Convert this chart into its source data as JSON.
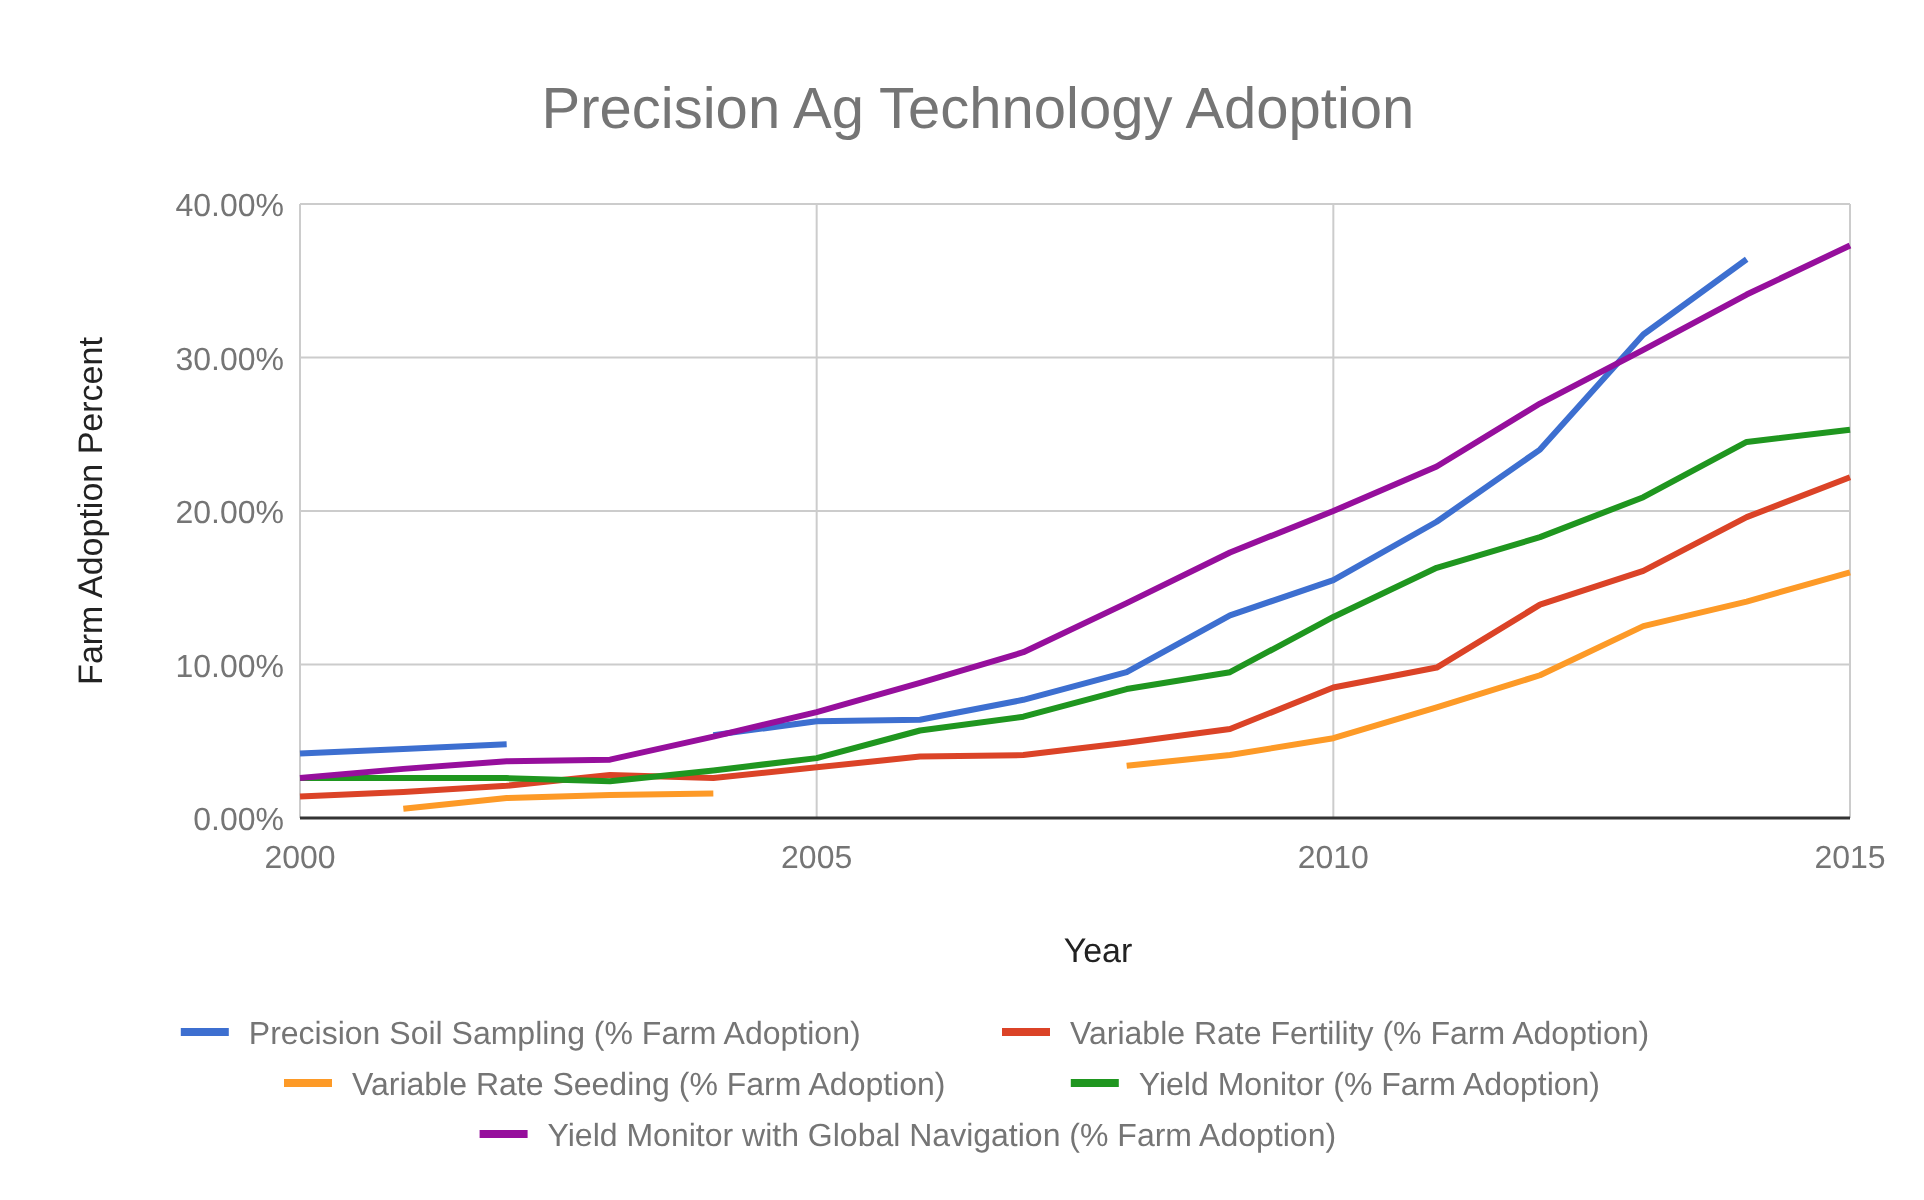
{
  "chart_data": {
    "type": "line",
    "title": "Precision Ag Technology Adoption",
    "xlabel": "Year",
    "ylabel": "Farm Adoption Percent",
    "x": [
      2000,
      2001,
      2002,
      2003,
      2004,
      2005,
      2006,
      2007,
      2008,
      2009,
      2010,
      2011,
      2012,
      2013,
      2014,
      2015
    ],
    "xlim": [
      2000,
      2015
    ],
    "xticks": [
      2000,
      2005,
      2010,
      2015
    ],
    "ylim": [
      0,
      40
    ],
    "yticks": [
      {
        "value": 0,
        "label": "0.00%"
      },
      {
        "value": 10,
        "label": "10.00%"
      },
      {
        "value": 20,
        "label": "20.00%"
      },
      {
        "value": 30,
        "label": "30.00%"
      },
      {
        "value": 40,
        "label": "40.00%"
      }
    ],
    "grid": true,
    "legend": "bottom",
    "marker": "none",
    "line_style": "solid",
    "series": [
      {
        "name": "Precision Soil Sampling (% Farm Adoption)",
        "color": "#3d6fd0",
        "values": [
          4.2,
          4.5,
          4.8,
          null,
          5.4,
          6.3,
          6.4,
          7.7,
          9.5,
          13.2,
          15.5,
          19.3,
          24,
          31.5,
          36.4,
          null
        ]
      },
      {
        "name": "Variable Rate Fertility (% Farm Adoption)",
        "color": "#db4327",
        "values": [
          1.4,
          1.7,
          2.1,
          2.8,
          2.6,
          3.3,
          4.0,
          4.1,
          4.9,
          5.8,
          8.5,
          9.8,
          13.9,
          16.1,
          19.6,
          22.2
        ]
      },
      {
        "name": "Variable Rate Seeding (% Farm Adoption)",
        "color": "#fd9a27",
        "values": [
          null,
          0.6,
          1.3,
          1.5,
          1.6,
          null,
          null,
          null,
          3.4,
          4.1,
          5.2,
          7.2,
          9.3,
          12.5,
          14.1,
          16.0
        ]
      },
      {
        "name": "Yield Monitor (% Farm Adoption)",
        "color": "#1f961f",
        "values": [
          2.6,
          2.6,
          2.6,
          2.4,
          3.1,
          3.9,
          5.7,
          6.6,
          8.4,
          9.5,
          13.1,
          16.3,
          18.3,
          20.9,
          24.5,
          25.3
        ]
      },
      {
        "name": "Yield Monitor with Global Navigation (% Farm Adoption)",
        "color": "#960f9c",
        "values": [
          2.6,
          3.2,
          3.7,
          3.8,
          5.3,
          6.9,
          8.8,
          10.8,
          14,
          17.3,
          20,
          22.9,
          27,
          30.5,
          34.1,
          37.3
        ]
      }
    ]
  }
}
